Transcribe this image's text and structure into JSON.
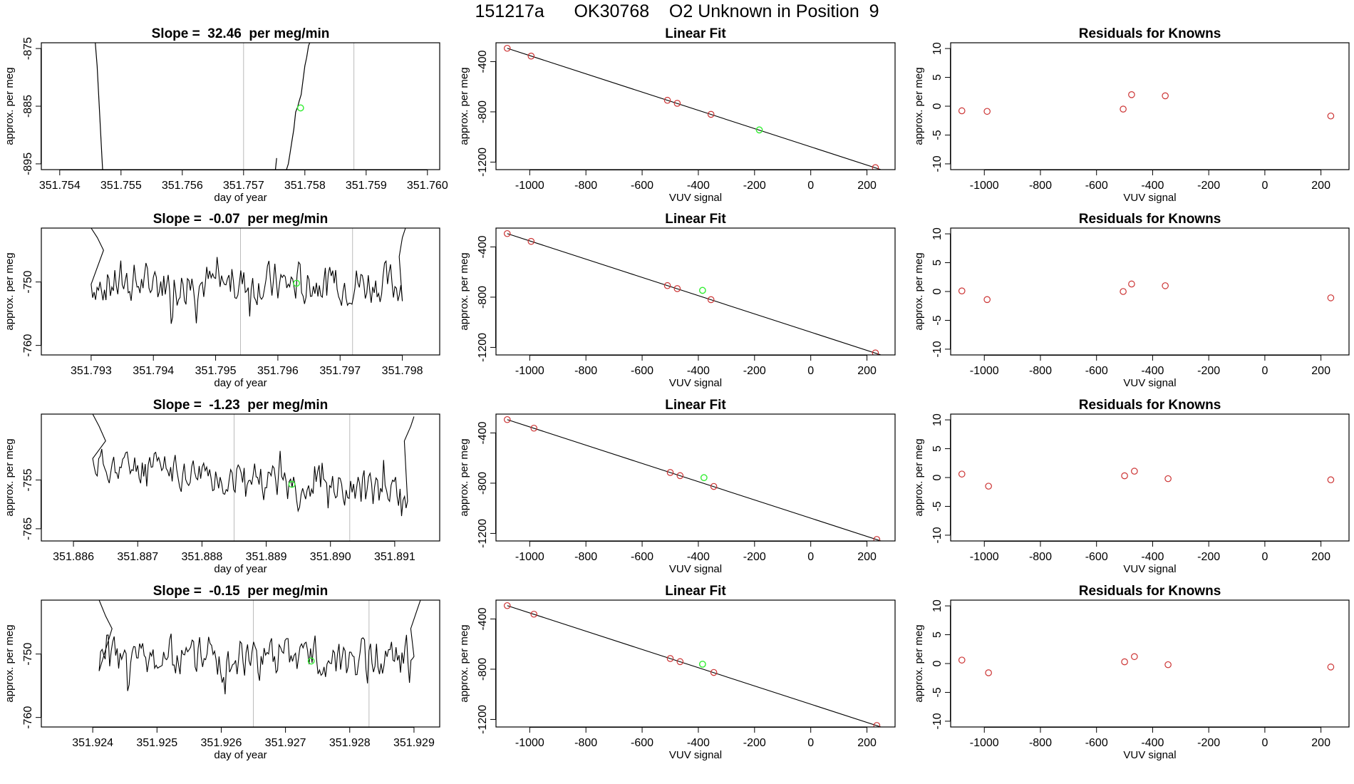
{
  "figure_title": "151217a      OK30768    O2 Unknown in Position  9",
  "chart_data": [
    {
      "type": "line",
      "panel": "timeseries",
      "row": 0,
      "title": "Slope =  32.46  per meg/min",
      "xlabel": "day of year",
      "ylabel": "approx. per meg",
      "xlim": [
        351.7537,
        351.7602
      ],
      "ylim": [
        -896,
        -874
      ],
      "xticks": [
        351.754,
        351.755,
        351.756,
        351.757,
        351.758,
        351.759,
        351.76
      ],
      "xtick_labels": [
        "351.754",
        "351.755",
        "351.756",
        "351.757",
        "351.758",
        "351.759",
        "351.760"
      ],
      "yticks": [
        -875,
        -885,
        -895
      ],
      "vlines": [
        351.757,
        351.7588
      ],
      "segments": [
        [
          [
            351.75458,
            -874
          ],
          [
            351.75461,
            -878
          ],
          [
            351.75463,
            -882
          ],
          [
            351.75465,
            -886
          ],
          [
            351.75467,
            -890
          ],
          [
            351.75469,
            -894
          ],
          [
            351.7547,
            -896
          ]
        ],
        [
          [
            351.7577,
            -896
          ],
          [
            351.75773,
            -895
          ],
          [
            351.75776,
            -893
          ],
          [
            351.75779,
            -891
          ],
          [
            351.75782,
            -889
          ],
          [
            351.75785,
            -886
          ],
          [
            351.75788,
            -885.2
          ],
          [
            351.75791,
            -884
          ],
          [
            351.75794,
            -883
          ],
          [
            351.75797,
            -880.5
          ],
          [
            351.758,
            -878
          ],
          [
            351.75803,
            -876.5
          ],
          [
            351.75806,
            -874.5
          ],
          [
            351.75808,
            -874
          ]
        ],
        [
          [
            351.75752,
            -896
          ],
          [
            351.75754,
            -894
          ]
        ]
      ],
      "highlight": {
        "x": 351.75793,
        "y": -885.3,
        "color": "#33ee33"
      }
    },
    {
      "type": "line",
      "panel": "timeseries",
      "row": 1,
      "title": "Slope =  -0.07  per meg/min",
      "xlabel": "day of year",
      "ylabel": "approx. per meg",
      "xlim": [
        351.7922,
        351.7986
      ],
      "ylim": [
        -761.5,
        -741.5
      ],
      "xticks": [
        351.793,
        351.794,
        351.795,
        351.796,
        351.797,
        351.798
      ],
      "xtick_labels": [
        "351.793",
        "351.794",
        "351.795",
        "351.796",
        "351.797",
        "351.798"
      ],
      "yticks": [
        -750,
        -760
      ],
      "vlines": [
        351.7954,
        351.7972
      ],
      "noise": {
        "x0": 351.793,
        "x1": 351.798,
        "n": 210,
        "base": -750.3,
        "amp": 2.8,
        "seed": 7,
        "ramp_in": [
          [
            351.793,
            -741.5
          ],
          [
            351.7931,
            -743
          ],
          [
            351.7932,
            -745
          ]
        ],
        "ramp_out": [
          [
            351.79795,
            -746
          ],
          [
            351.798,
            -743
          ],
          [
            351.79805,
            -741.5
          ]
        ]
      },
      "highlight": {
        "x": 351.7963,
        "y": -750.2,
        "color": "#33ee33"
      }
    },
    {
      "type": "line",
      "panel": "timeseries",
      "row": 2,
      "title": "Slope =  -1.23  per meg/min",
      "xlabel": "day of year",
      "ylabel": "approx. per meg",
      "xlim": [
        351.8855,
        351.8917
      ],
      "ylim": [
        -767.5,
        -741.5
      ],
      "xticks": [
        351.886,
        351.887,
        351.888,
        351.889,
        351.89,
        351.891
      ],
      "xtick_labels": [
        "351.886",
        "351.887",
        "351.888",
        "351.889",
        "351.890",
        "351.891"
      ],
      "yticks": [
        -755,
        -765
      ],
      "vlines": [
        351.8885,
        351.8903
      ],
      "noise": {
        "x0": 351.8863,
        "x1": 351.8912,
        "n": 210,
        "base": -751.5,
        "slope": -6.5,
        "amp": 3.0,
        "seed": 11,
        "ramp_in": [
          [
            351.8863,
            -741.5
          ],
          [
            351.8864,
            -744
          ],
          [
            351.8865,
            -747
          ]
        ],
        "ramp_out": [
          [
            351.89115,
            -747
          ],
          [
            351.89125,
            -744
          ],
          [
            351.8913,
            -742
          ]
        ]
      },
      "highlight": {
        "x": 351.8894,
        "y": -755.9,
        "color": "#33ee33"
      }
    },
    {
      "type": "line",
      "panel": "timeseries",
      "row": 3,
      "title": "Slope =  -0.15  per meg/min",
      "xlabel": "day of year",
      "ylabel": "approx. per meg",
      "xlim": [
        351.9232,
        351.9294
      ],
      "ylim": [
        -761.5,
        -741.5
      ],
      "xticks": [
        351.924,
        351.925,
        351.926,
        351.927,
        351.928,
        351.929
      ],
      "xtick_labels": [
        "351.924",
        "351.925",
        "351.926",
        "351.927",
        "351.928",
        "351.929"
      ],
      "yticks": [
        -750,
        -760
      ],
      "vlines": [
        351.9265,
        351.9283
      ],
      "noise": {
        "x0": 351.9241,
        "x1": 351.929,
        "n": 210,
        "base": -750.6,
        "amp": 2.8,
        "seed": 23,
        "ramp_in": [
          [
            351.9241,
            -741.5
          ],
          [
            351.9242,
            -744
          ],
          [
            351.9243,
            -746
          ]
        ],
        "ramp_out": [
          [
            351.92895,
            -746
          ],
          [
            351.92905,
            -743
          ],
          [
            351.9291,
            -741.5
          ]
        ]
      },
      "highlight": {
        "x": 351.9274,
        "y": -751.1,
        "color": "#33ee33"
      }
    },
    {
      "type": "scatter",
      "panel": "fit",
      "row": 0,
      "title": "Linear Fit",
      "xlabel": "VUV signal",
      "ylabel": "approx. per meg",
      "xlim": [
        -1120,
        300
      ],
      "ylim": [
        -1260,
        -250
      ],
      "xticks": [
        -1000,
        -800,
        -600,
        -400,
        -200,
        0,
        200
      ],
      "yticks": [
        -400,
        -800,
        -1200
      ],
      "line": [
        [
          -1080,
          -294
        ],
        [
          280,
          -1282
        ]
      ],
      "points": [
        [
          -1080,
          -294
        ],
        [
          -995,
          -356
        ],
        [
          -510,
          -708
        ],
        [
          -475,
          -732
        ],
        [
          -355,
          -820
        ],
        [
          230,
          -1244
        ]
      ],
      "highlight": {
        "x": -183,
        "y": -944,
        "color": "#33ee33"
      }
    },
    {
      "type": "scatter",
      "panel": "fit",
      "row": 1,
      "title": "Linear Fit",
      "xlabel": "VUV signal",
      "ylabel": "approx. per meg",
      "xlim": [
        -1120,
        300
      ],
      "ylim": [
        -1260,
        -250
      ],
      "xticks": [
        -1000,
        -800,
        -600,
        -400,
        -200,
        0,
        200
      ],
      "yticks": [
        -400,
        -800,
        -1200
      ],
      "line": [
        [
          -1080,
          -294
        ],
        [
          280,
          -1282
        ]
      ],
      "points": [
        [
          -1080,
          -294
        ],
        [
          -995,
          -356
        ],
        [
          -510,
          -708
        ],
        [
          -475,
          -732
        ],
        [
          -355,
          -820
        ],
        [
          230,
          -1244
        ]
      ],
      "highlight": {
        "x": -385,
        "y": -746,
        "color": "#33ee33"
      }
    },
    {
      "type": "scatter",
      "panel": "fit",
      "row": 2,
      "title": "Linear Fit",
      "xlabel": "VUV signal",
      "ylabel": "approx. per meg",
      "xlim": [
        -1120,
        300
      ],
      "ylim": [
        -1260,
        -250
      ],
      "xticks": [
        -1000,
        -800,
        -600,
        -400,
        -200,
        0,
        200
      ],
      "yticks": [
        -400,
        -800,
        -1200
      ],
      "line": [
        [
          -1080,
          -294
        ],
        [
          280,
          -1282
        ]
      ],
      "points": [
        [
          -1080,
          -294
        ],
        [
          -985,
          -362
        ],
        [
          -500,
          -715
        ],
        [
          -465,
          -740
        ],
        [
          -345,
          -826
        ],
        [
          235,
          -1248
        ]
      ],
      "highlight": {
        "x": -380,
        "y": -756,
        "color": "#33ee33"
      }
    },
    {
      "type": "scatter",
      "panel": "fit",
      "row": 3,
      "title": "Linear Fit",
      "xlabel": "VUV signal",
      "ylabel": "approx. per meg",
      "xlim": [
        -1120,
        300
      ],
      "ylim": [
        -1260,
        -250
      ],
      "xticks": [
        -1000,
        -800,
        -600,
        -400,
        -200,
        0,
        200
      ],
      "yticks": [
        -400,
        -800,
        -1200
      ],
      "line": [
        [
          -1080,
          -294
        ],
        [
          280,
          -1282
        ]
      ],
      "points": [
        [
          -1080,
          -294
        ],
        [
          -985,
          -362
        ],
        [
          -500,
          -715
        ],
        [
          -465,
          -740
        ],
        [
          -345,
          -826
        ],
        [
          235,
          -1248
        ]
      ],
      "highlight": {
        "x": -385,
        "y": -760,
        "color": "#33ee33"
      }
    },
    {
      "type": "scatter",
      "panel": "residuals",
      "row": 0,
      "title": "Residuals for Knowns",
      "xlabel": "VUV signal",
      "ylabel": "approx. per meg",
      "xlim": [
        -1120,
        300
      ],
      "ylim": [
        -11,
        11
      ],
      "xticks": [
        -1000,
        -800,
        -600,
        -400,
        -200,
        0,
        200
      ],
      "yticks": [
        10,
        5,
        0,
        -5,
        -10
      ],
      "points": [
        [
          -1080,
          -0.8
        ],
        [
          -990,
          -0.9
        ],
        [
          -505,
          -0.5
        ],
        [
          -475,
          2.0
        ],
        [
          -355,
          1.8
        ],
        [
          235,
          -1.7
        ]
      ]
    },
    {
      "type": "scatter",
      "panel": "residuals",
      "row": 1,
      "title": "Residuals for Knowns",
      "xlabel": "VUV signal",
      "ylabel": "approx. per meg",
      "xlim": [
        -1120,
        300
      ],
      "ylim": [
        -11,
        11
      ],
      "xticks": [
        -1000,
        -800,
        -600,
        -400,
        -200,
        0,
        200
      ],
      "yticks": [
        10,
        5,
        0,
        -5,
        -10
      ],
      "points": [
        [
          -1080,
          0.1
        ],
        [
          -990,
          -1.4
        ],
        [
          -505,
          0.0
        ],
        [
          -475,
          1.3
        ],
        [
          -355,
          1.0
        ],
        [
          235,
          -1.1
        ]
      ]
    },
    {
      "type": "scatter",
      "panel": "residuals",
      "row": 2,
      "title": "Residuals for Knowns",
      "xlabel": "VUV signal",
      "ylabel": "approx. per meg",
      "xlim": [
        -1120,
        300
      ],
      "ylim": [
        -11,
        11
      ],
      "xticks": [
        -1000,
        -800,
        -600,
        -400,
        -200,
        0,
        200
      ],
      "yticks": [
        10,
        5,
        0,
        -5,
        -10
      ],
      "points": [
        [
          -1080,
          0.6
        ],
        [
          -985,
          -1.5
        ],
        [
          -500,
          0.3
        ],
        [
          -465,
          1.1
        ],
        [
          -345,
          -0.2
        ],
        [
          235,
          -0.4
        ]
      ]
    },
    {
      "type": "scatter",
      "panel": "residuals",
      "row": 3,
      "title": "Residuals for Knowns",
      "xlabel": "VUV signal",
      "ylabel": "approx. per meg",
      "xlim": [
        -1120,
        300
      ],
      "ylim": [
        -11,
        11
      ],
      "xticks": [
        -1000,
        -800,
        -600,
        -400,
        -200,
        0,
        200
      ],
      "yticks": [
        10,
        5,
        0,
        -5,
        -10
      ],
      "points": [
        [
          -1080,
          0.6
        ],
        [
          -985,
          -1.6
        ],
        [
          -500,
          0.3
        ],
        [
          -465,
          1.2
        ],
        [
          -345,
          -0.2
        ],
        [
          235,
          -0.6
        ]
      ]
    }
  ]
}
